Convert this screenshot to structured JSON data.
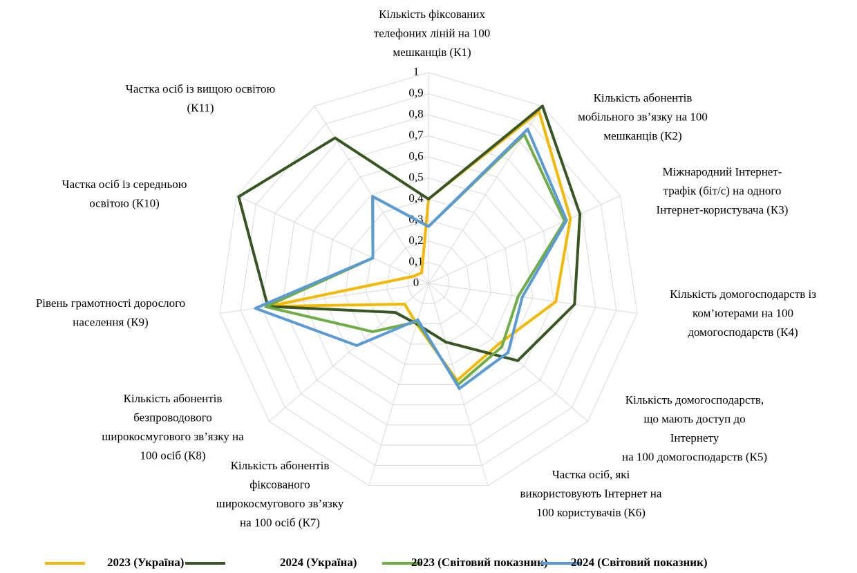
{
  "chart_data": {
    "type": "radar",
    "categories": [
      [
        "Кількість фіксованих",
        "телефоних ліній на 100",
        "мешканців (К1)"
      ],
      [
        "Кількість абонентів",
        "мобільного зв’язку на 100",
        "мешканців (К2)"
      ],
      [
        "Міжнародний Інтернет-",
        "трафік (біт/с) на одного",
        "Інтернет-користувача (К3)"
      ],
      [
        "Кількість домогосподарств із",
        "ком’ютерами на 100",
        "домогосподарств (К4)"
      ],
      [
        "Кількість домогосподарств,",
        "що мають доступ до",
        "Інтернету",
        "на 100 домогосподарств (К5)"
      ],
      [
        "Частка осіб, які",
        "використовують Інтернет на",
        "100 користувачів (К6)"
      ],
      [
        "Кількість абонентів",
        "фіксованого",
        "широкосмугового зв’язку",
        "на 100 осіб (К7)"
      ],
      [
        "Кількість абонентів",
        "безпроводового",
        "широкосмугового зв’язку на",
        "100 осіб (К8)"
      ],
      [
        "Рівень грамотності дорослого",
        "населення (К9)"
      ],
      [
        "Частка осіб із середньою",
        "освітою (К10)"
      ],
      [
        "Частка осіб із вищою освітою",
        "(К11)"
      ]
    ],
    "series": [
      {
        "name": "2023  (Україна)",
        "color": "#f5b800",
        "values": [
          0.4,
          0.97,
          0.74,
          0.61,
          0.44,
          0.48,
          0.2,
          0.15,
          0.77,
          0.08,
          0.06
        ]
      },
      {
        "name": "2024  (Україна)",
        "color": "#375623",
        "values": [
          0.4,
          1.0,
          0.79,
          0.7,
          0.56,
          0.29,
          0.2,
          0.21,
          0.77,
          0.99,
          0.82
        ]
      },
      {
        "name": "2023 (Світовий показник)",
        "color": "#70ad47",
        "values": [
          0.27,
          0.84,
          0.71,
          0.43,
          0.46,
          0.5,
          0.19,
          0.35,
          0.78,
          0.29,
          0.49
        ]
      },
      {
        "name": "2024 (Світовий показник)",
        "color": "#5b9bd5",
        "values": [
          0.27,
          0.87,
          0.72,
          0.45,
          0.5,
          0.52,
          0.18,
          0.45,
          0.83,
          0.29,
          0.49
        ]
      }
    ],
    "ylim": [
      0,
      1
    ],
    "yticks": [
      0,
      {
        "value": 0.1,
        "label": "0,1"
      },
      {
        "value": 0.2,
        "label": "0,2"
      },
      {
        "value": 0.3,
        "label": "0,3"
      },
      {
        "value": 0.4,
        "label": "0,4"
      },
      {
        "value": 0.5,
        "label": "0,5"
      },
      {
        "value": 0.6,
        "label": "0,6"
      },
      {
        "value": 0.7,
        "label": "0,7"
      },
      {
        "value": 0.8,
        "label": "0,8"
      },
      {
        "value": 0.9,
        "label": "0,9"
      },
      1
    ],
    "grid": true
  }
}
